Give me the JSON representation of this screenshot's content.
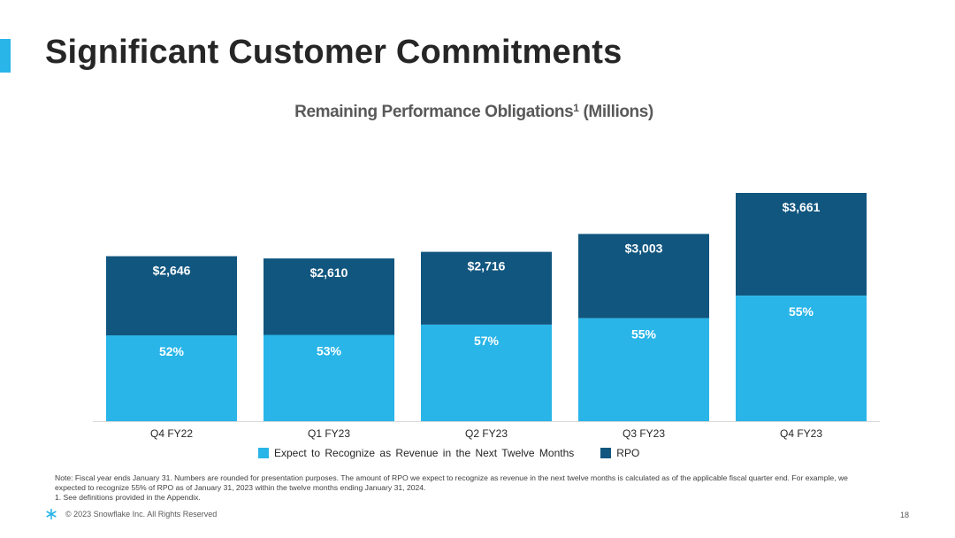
{
  "header": {
    "title": "Significant Customer Commitments"
  },
  "chart_data": {
    "type": "bar",
    "stacked": true,
    "title": "Remaining Performance Obligations",
    "title_superscript": "1",
    "title_suffix": "(Millions)",
    "categories": [
      "Q4 FY22",
      "Q1 FY23",
      "Q2 FY23",
      "Q3 FY23",
      "Q4 FY23"
    ],
    "total_values": [
      2646,
      2610,
      2716,
      3003,
      3661
    ],
    "total_labels": [
      "$2,646",
      "$2,610",
      "$2,716",
      "$3,003",
      "$3,661"
    ],
    "next_twelve_months_pct": [
      52,
      53,
      57,
      55,
      55
    ],
    "pct_labels": [
      "52%",
      "53%",
      "57%",
      "55%",
      "55%"
    ],
    "series": [
      {
        "name": "Expect to Recognize as Revenue in the Next Twelve Months",
        "color": "#29b5e8"
      },
      {
        "name": "RPO",
        "color": "#11567f"
      }
    ],
    "ylim": [
      0,
      4000
    ],
    "grid": false,
    "legend_position": "bottom"
  },
  "notes": {
    "line1": "Note: Fiscal year ends January 31. Numbers are rounded for presentation purposes. The amount of RPO we expect to recognize as revenue in the next twelve months is calculated as of the applicable fiscal quarter end. For example, we",
    "line2": "expected to recognize 55% of RPO as of January 31, 2023 within the twelve months ending January 31, 2024.",
    "line3": "1.  See definitions provided in the Appendix."
  },
  "footer": {
    "copyright": "© 2023 Snowflake Inc. All Rights Reserved",
    "page_number": "18",
    "logo_icon": "snowflake-logo-icon"
  },
  "colors": {
    "accent": "#29b5e8",
    "dark": "#11567f"
  }
}
